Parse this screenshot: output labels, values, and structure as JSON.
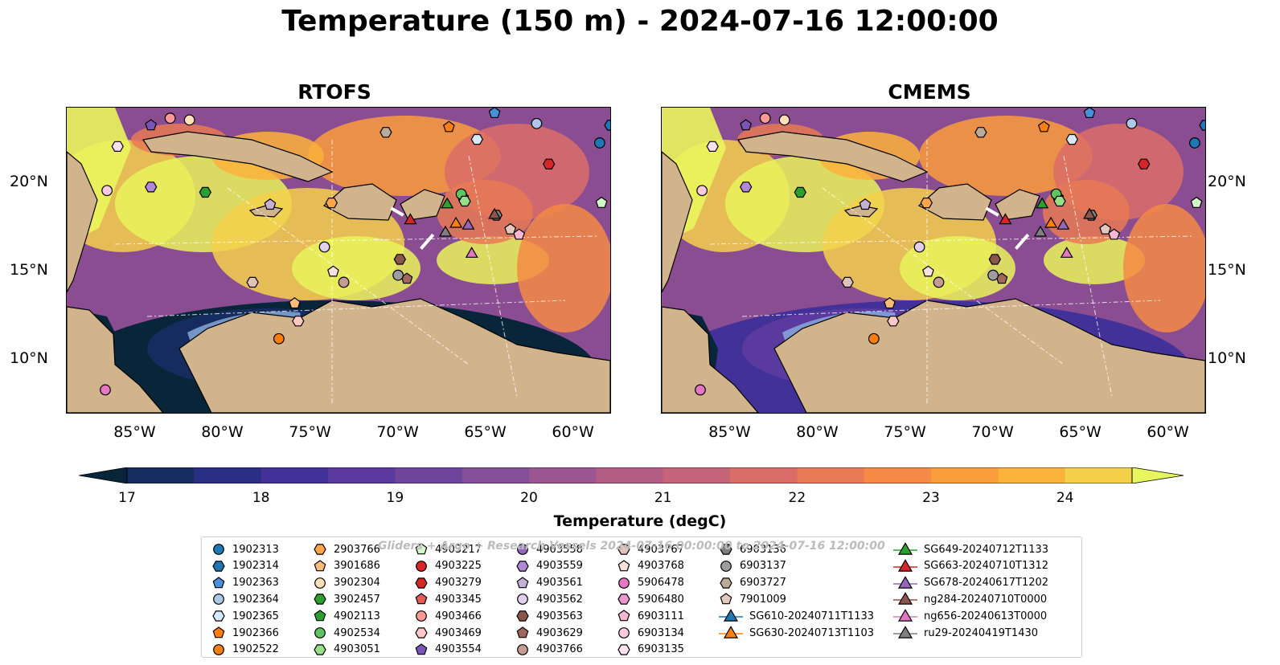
{
  "title": "Temperature (150 m) - 2024-07-16 12:00:00",
  "panels": [
    {
      "title": "RTOFS"
    },
    {
      "title": "CMEMS"
    }
  ],
  "lon_ticks": [
    "85°W",
    "80°W",
    "75°W",
    "70°W",
    "65°W",
    "60°W"
  ],
  "lat_ticks": [
    "20°N",
    "15°N",
    "10°N"
  ],
  "colorbar": {
    "label": "Temperature (degC)",
    "ticks": [
      "17",
      "18",
      "19",
      "20",
      "21",
      "22",
      "23",
      "24"
    ],
    "colors": [
      "#08253a",
      "#162b5e",
      "#2a2f85",
      "#43319a",
      "#5a3a9e",
      "#6f449c",
      "#844e98",
      "#9b5591",
      "#b35c86",
      "#c86479",
      "#db6d68",
      "#e87a55",
      "#f58a44",
      "#fa9c3b",
      "#fbb23b",
      "#f4d04a",
      "#e9f55c"
    ]
  },
  "watermark": "Gliders + Argo + Research Vessels 2024-07-16 00:00:00 to 2024-07-16 12:00:00",
  "legend": [
    {
      "label": "1902313",
      "shape": "circle",
      "color": "#1f77b4"
    },
    {
      "label": "1902314",
      "shape": "hexagon",
      "color": "#1f77b4"
    },
    {
      "label": "1902363",
      "shape": "pentagon",
      "color": "#4a90d9"
    },
    {
      "label": "1902364",
      "shape": "circle",
      "color": "#aec7e8"
    },
    {
      "label": "1902365",
      "shape": "hexagon",
      "color": "#d8e8f8"
    },
    {
      "label": "1902366",
      "shape": "pentagon",
      "color": "#ff7f0e"
    },
    {
      "label": "1902522",
      "shape": "circle",
      "color": "#ff7f0e"
    },
    {
      "label": "2903766",
      "shape": "hexagon",
      "color": "#ffa54a"
    },
    {
      "label": "3901686",
      "shape": "pentagon",
      "color": "#ffbb78"
    },
    {
      "label": "3902304",
      "shape": "circle",
      "color": "#ffe0b8"
    },
    {
      "label": "3902457",
      "shape": "hexagon",
      "color": "#2ca02c"
    },
    {
      "label": "4902113",
      "shape": "pentagon",
      "color": "#2ca02c"
    },
    {
      "label": "4902534",
      "shape": "circle",
      "color": "#5fc45f"
    },
    {
      "label": "4903051",
      "shape": "hexagon",
      "color": "#98df8a"
    },
    {
      "label": "4903217",
      "shape": "pentagon",
      "color": "#d4f5cc"
    },
    {
      "label": "4903225",
      "shape": "circle",
      "color": "#d62728"
    },
    {
      "label": "4903279",
      "shape": "hexagon",
      "color": "#d62728"
    },
    {
      "label": "4903345",
      "shape": "pentagon",
      "color": "#e45a5a"
    },
    {
      "label": "4903466",
      "shape": "circle",
      "color": "#ff9896"
    },
    {
      "label": "4903469",
      "shape": "hexagon",
      "color": "#ffc8c6"
    },
    {
      "label": "4903554",
      "shape": "pentagon",
      "color": "#7b55b5"
    },
    {
      "label": "4903558",
      "shape": "circle",
      "color": "#9467bd"
    },
    {
      "label": "4903559",
      "shape": "hexagon",
      "color": "#b08ad8"
    },
    {
      "label": "4903561",
      "shape": "pentagon",
      "color": "#c5b0d5"
    },
    {
      "label": "4903562",
      "shape": "circle",
      "color": "#e0d0ee"
    },
    {
      "label": "4903563",
      "shape": "hexagon",
      "color": "#8c564b"
    },
    {
      "label": "4903629",
      "shape": "pentagon",
      "color": "#a0685c"
    },
    {
      "label": "4903766",
      "shape": "circle",
      "color": "#c49c94"
    },
    {
      "label": "4903767",
      "shape": "hexagon",
      "color": "#e0c2b8"
    },
    {
      "label": "4903768",
      "shape": "pentagon",
      "color": "#f7e2da"
    },
    {
      "label": "5906478",
      "shape": "circle",
      "color": "#e377c2"
    },
    {
      "label": "5906480",
      "shape": "hexagon",
      "color": "#eb96d2"
    },
    {
      "label": "6903111",
      "shape": "pentagon",
      "color": "#f7b6d2"
    },
    {
      "label": "6903134",
      "shape": "circle",
      "color": "#f9c9e0"
    },
    {
      "label": "6903135",
      "shape": "hexagon",
      "color": "#fce0ee"
    },
    {
      "label": "6903136",
      "shape": "hexagon",
      "color": "#7f7f7f"
    },
    {
      "label": "6903137",
      "shape": "circle",
      "color": "#9d9d9d"
    },
    {
      "label": "6903727",
      "shape": "hexagon",
      "color": "#bcaa98"
    },
    {
      "label": "7901009",
      "shape": "pentagon",
      "color": "#e3c8c0"
    },
    {
      "label": "SG610-20240711T1133",
      "shape": "triangle",
      "color": "#1f77b4"
    },
    {
      "label": "SG630-20240713T1103",
      "shape": "triangle",
      "color": "#ff7f0e"
    },
    {
      "label": "SG649-20240712T1133",
      "shape": "triangle",
      "color": "#2ca02c"
    },
    {
      "label": "SG663-20240710T1312",
      "shape": "triangle",
      "color": "#d62728"
    },
    {
      "label": "SG678-20240617T1202",
      "shape": "triangle",
      "color": "#9467bd"
    },
    {
      "label": "ng284-20240710T0000",
      "shape": "triangle",
      "color": "#8c564b"
    },
    {
      "label": "ng656-20240613T0000",
      "shape": "triangle",
      "color": "#e377c2"
    },
    {
      "label": "ru29-20240419T1430",
      "shape": "triangle",
      "color": "#7f7f7f"
    }
  ],
  "markers": [
    {
      "label": "1902313",
      "lon": -58.6,
      "lat": 22.3
    },
    {
      "label": "1902314",
      "lon": -58.0,
      "lat": 23.3
    },
    {
      "label": "1902363",
      "lon": -64.6,
      "lat": 24.0
    },
    {
      "label": "1902364",
      "lon": -62.2,
      "lat": 23.4
    },
    {
      "label": "1902365",
      "lon": -65.6,
      "lat": 22.5
    },
    {
      "label": "1902366",
      "lon": -67.2,
      "lat": 23.2
    },
    {
      "label": "1902522",
      "lon": -76.9,
      "lat": 11.2
    },
    {
      "label": "2903766",
      "lon": -73.9,
      "lat": 18.9
    },
    {
      "label": "3901686",
      "lon": -76.0,
      "lat": 13.2
    },
    {
      "label": "3902304",
      "lon": -82.0,
      "lat": 23.6
    },
    {
      "label": "3902457",
      "lon": -81.1,
      "lat": 19.5
    },
    {
      "label": "4902113",
      "lon": -66.4,
      "lat": 19.2
    },
    {
      "label": "4902534",
      "lon": -66.5,
      "lat": 19.4
    },
    {
      "label": "4903051",
      "lon": -66.3,
      "lat": 19.0
    },
    {
      "label": "4903217",
      "lon": -58.5,
      "lat": 18.9
    },
    {
      "label": "4903279",
      "lon": -61.5,
      "lat": 21.1
    },
    {
      "label": "4903466",
      "lon": -83.1,
      "lat": 23.7
    },
    {
      "label": "4903469",
      "lon": -75.8,
      "lat": 12.2
    },
    {
      "label": "4903554",
      "lon": -84.2,
      "lat": 23.3
    },
    {
      "label": "4903559",
      "lon": -84.2,
      "lat": 19.8
    },
    {
      "label": "4903561",
      "lon": -77.4,
      "lat": 18.8
    },
    {
      "label": "4903562",
      "lon": -74.3,
      "lat": 16.4
    },
    {
      "label": "4903563",
      "lon": -70.0,
      "lat": 15.7
    },
    {
      "label": "4903629",
      "lon": -69.6,
      "lat": 14.6
    },
    {
      "label": "4903766",
      "lon": -73.2,
      "lat": 14.4
    },
    {
      "label": "4903767",
      "lon": -78.4,
      "lat": 14.4
    },
    {
      "label": "4903768",
      "lon": -73.8,
      "lat": 15.0
    },
    {
      "label": "5906478",
      "lon": -86.8,
      "lat": 8.3
    },
    {
      "label": "6903111",
      "lon": -63.2,
      "lat": 17.1
    },
    {
      "label": "6903134",
      "lon": -86.7,
      "lat": 19.6
    },
    {
      "label": "6903135",
      "lon": -86.1,
      "lat": 22.1
    },
    {
      "label": "6903136",
      "lon": -64.5,
      "lat": 18.2
    },
    {
      "label": "6903137",
      "lon": -70.1,
      "lat": 14.8
    },
    {
      "label": "6903727",
      "lon": -70.8,
      "lat": 22.9
    },
    {
      "label": "7901009",
      "lon": -63.7,
      "lat": 17.4
    },
    {
      "label": "SG630-20240713T1103",
      "lon": -66.8,
      "lat": 17.7
    },
    {
      "label": "SG649-20240712T1133",
      "lon": -67.3,
      "lat": 18.8
    },
    {
      "label": "SG663-20240710T1312",
      "lon": -69.4,
      "lat": 17.9
    },
    {
      "label": "SG678-20240617T1202",
      "lon": -66.1,
      "lat": 17.6
    },
    {
      "label": "ng284-20240710T0000",
      "lon": -64.6,
      "lat": 18.2
    },
    {
      "label": "ng656-20240613T0000",
      "lon": -65.9,
      "lat": 16.0
    },
    {
      "label": "ru29-20240419T1430",
      "lon": -67.4,
      "lat": 17.2
    }
  ]
}
